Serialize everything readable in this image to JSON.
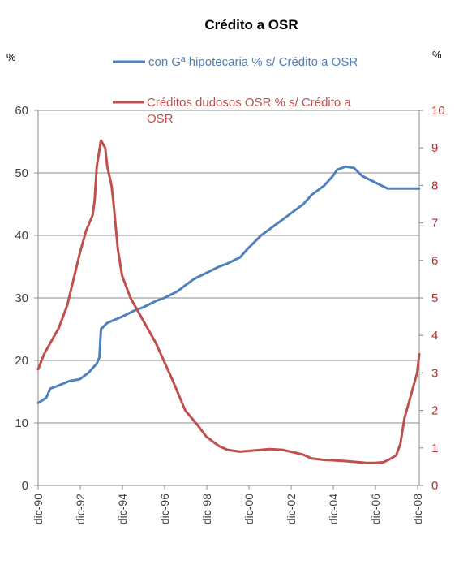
{
  "chart_data": {
    "type": "line",
    "title": "Crédito a OSR",
    "left_unit": "%",
    "right_unit": "%",
    "ylim_left": [
      0,
      60
    ],
    "yticks_left": [
      "0",
      "10",
      "20",
      "30",
      "40",
      "50",
      "60"
    ],
    "ylim_right": [
      0,
      10
    ],
    "yticks_right": [
      "0",
      "1",
      "2",
      "3",
      "4",
      "5",
      "6",
      "7",
      "8",
      "9",
      "10"
    ],
    "x_start": 1990.92,
    "x_end": 2009.0,
    "x_tick_labels": [
      "dic-90",
      "dic-92",
      "dic-94",
      "dic-96",
      "dic-98",
      "dic-00",
      "dic-02",
      "dic-04",
      "dic-06",
      "dic-08"
    ],
    "x_tick_positions": [
      1990.92,
      1992.92,
      1994.92,
      1996.92,
      1998.92,
      2000.92,
      2002.92,
      2004.92,
      2006.92,
      2008.92
    ],
    "grid": true,
    "legend": "top",
    "series": [
      {
        "name": "con Gª hipotecaria % s/ Crédito a OSR",
        "axis": "left",
        "color": "#4f81bd",
        "x": [
          1990.92,
          1991.3,
          1991.5,
          1991.9,
          1992.4,
          1992.9,
          1993.3,
          1993.7,
          1993.83,
          1993.9,
          1994.2,
          1994.9,
          1995.5,
          1995.9,
          1996.5,
          1996.9,
          1997.5,
          1997.9,
          1998.3,
          1998.9,
          1999.5,
          1999.9,
          2000.5,
          2000.9,
          2001.5,
          2001.9,
          2002.5,
          2002.9,
          2003.5,
          2003.9,
          2004.5,
          2004.9,
          2005.1,
          2005.5,
          2005.9,
          2006.3,
          2006.9,
          2007.5,
          2007.9,
          2008.5,
          2009.0
        ],
        "values": [
          13.2,
          14.0,
          15.5,
          16.0,
          16.7,
          17.0,
          18.0,
          19.5,
          20.5,
          25.0,
          26.0,
          27.0,
          28.0,
          28.5,
          29.5,
          30.0,
          31.0,
          32.0,
          33.0,
          34.0,
          35.0,
          35.5,
          36.5,
          38.0,
          40.0,
          41.0,
          42.5,
          43.5,
          45.0,
          46.5,
          48.0,
          49.5,
          50.5,
          51.0,
          50.8,
          49.5,
          48.5,
          47.5,
          47.5,
          47.5,
          47.5
        ]
      },
      {
        "name": "Créditos dudosos OSR % s/ Crédito a OSR",
        "axis": "right",
        "color": "#c0504d",
        "x": [
          1990.92,
          1991.2,
          1991.5,
          1991.9,
          1992.3,
          1992.6,
          1992.9,
          1993.2,
          1993.5,
          1993.6,
          1993.7,
          1993.9,
          1994.1,
          1994.2,
          1994.4,
          1994.5,
          1994.7,
          1994.9,
          1995.3,
          1995.7,
          1995.9,
          1996.5,
          1996.9,
          1997.3,
          1997.9,
          1998.5,
          1998.9,
          1999.5,
          1999.9,
          2000.5,
          2000.9,
          2001.5,
          2001.9,
          2002.5,
          2002.9,
          2003.5,
          2003.9,
          2004.5,
          2004.9,
          2005.5,
          2005.9,
          2006.5,
          2006.9,
          2007.3,
          2007.6,
          2007.9,
          2008.1,
          2008.3,
          2008.6,
          2008.9,
          2009.0
        ],
        "values": [
          3.1,
          3.5,
          3.8,
          4.2,
          4.8,
          5.5,
          6.2,
          6.8,
          7.2,
          7.6,
          8.5,
          9.2,
          9.0,
          8.5,
          8.0,
          7.5,
          6.3,
          5.6,
          5.0,
          4.6,
          4.4,
          3.8,
          3.3,
          2.8,
          2.0,
          1.6,
          1.3,
          1.05,
          0.95,
          0.9,
          0.92,
          0.95,
          0.97,
          0.95,
          0.9,
          0.82,
          0.72,
          0.68,
          0.67,
          0.65,
          0.63,
          0.6,
          0.6,
          0.62,
          0.7,
          0.8,
          1.1,
          1.8,
          2.4,
          3.0,
          3.5
        ]
      }
    ]
  }
}
